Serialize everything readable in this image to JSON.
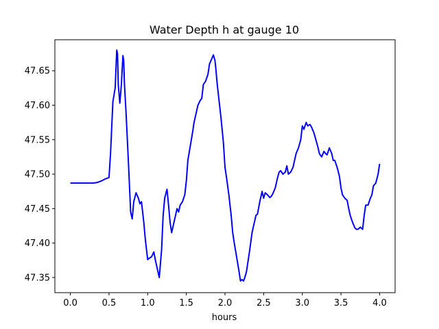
{
  "chart_data": {
    "type": "line",
    "title": "Water Depth h at gauge 10",
    "xlabel": "hours",
    "ylabel": "",
    "xlim": [
      -0.2,
      4.2
    ],
    "ylim": [
      47.328,
      47.695
    ],
    "xticks": [
      0.0,
      0.5,
      1.0,
      1.5,
      2.0,
      2.5,
      3.0,
      3.5,
      4.0
    ],
    "xtick_labels": [
      "0.0",
      "0.5",
      "1.0",
      "1.5",
      "2.0",
      "2.5",
      "3.0",
      "3.5",
      "4.0"
    ],
    "yticks": [
      47.35,
      47.4,
      47.45,
      47.5,
      47.55,
      47.6,
      47.65
    ],
    "ytick_labels": [
      "47.35",
      "47.40",
      "47.45",
      "47.50",
      "47.55",
      "47.60",
      "47.65"
    ],
    "grid": false,
    "series": [
      {
        "color": "#0000ff",
        "x": [
          0.0,
          0.1,
          0.2,
          0.3,
          0.35,
          0.4,
          0.45,
          0.5,
          0.52,
          0.55,
          0.58,
          0.6,
          0.61,
          0.62,
          0.64,
          0.66,
          0.68,
          0.69,
          0.7,
          0.72,
          0.75,
          0.78,
          0.8,
          0.82,
          0.85,
          0.88,
          0.9,
          0.92,
          0.95,
          0.97,
          1.0,
          1.02,
          1.05,
          1.08,
          1.1,
          1.12,
          1.15,
          1.18,
          1.2,
          1.22,
          1.25,
          1.27,
          1.29,
          1.31,
          1.33,
          1.35,
          1.38,
          1.4,
          1.42,
          1.45,
          1.48,
          1.5,
          1.52,
          1.55,
          1.58,
          1.6,
          1.63,
          1.65,
          1.68,
          1.7,
          1.72,
          1.75,
          1.78,
          1.8,
          1.82,
          1.85,
          1.87,
          1.88,
          1.9,
          1.92,
          1.95,
          1.98,
          2.0,
          2.02,
          2.05,
          2.08,
          2.1,
          2.12,
          2.15,
          2.18,
          2.2,
          2.22,
          2.24,
          2.25,
          2.27,
          2.28,
          2.3,
          2.32,
          2.35,
          2.38,
          2.4,
          2.42,
          2.45,
          2.48,
          2.5,
          2.52,
          2.55,
          2.58,
          2.6,
          2.62,
          2.65,
          2.68,
          2.7,
          2.72,
          2.75,
          2.78,
          2.8,
          2.82,
          2.85,
          2.88,
          2.9,
          2.92,
          2.95,
          2.98,
          3.0,
          3.02,
          3.05,
          3.07,
          3.1,
          3.12,
          3.15,
          3.18,
          3.2,
          3.22,
          3.25,
          3.28,
          3.3,
          3.32,
          3.35,
          3.38,
          3.4,
          3.42,
          3.45,
          3.48,
          3.5,
          3.52,
          3.55,
          3.58,
          3.6,
          3.62,
          3.65,
          3.68,
          3.7,
          3.72,
          3.75,
          3.78,
          3.8,
          3.82,
          3.85,
          3.88,
          3.9,
          3.92,
          3.95,
          3.98,
          4.0
        ],
        "values": [
          47.487,
          47.487,
          47.487,
          47.487,
          47.488,
          47.49,
          47.493,
          47.495,
          47.53,
          47.605,
          47.625,
          47.68,
          47.675,
          47.63,
          47.603,
          47.63,
          47.672,
          47.665,
          47.63,
          47.59,
          47.52,
          47.445,
          47.435,
          47.46,
          47.473,
          47.465,
          47.457,
          47.46,
          47.43,
          47.405,
          47.376,
          47.378,
          47.38,
          47.387,
          47.375,
          47.365,
          47.35,
          47.39,
          47.44,
          47.465,
          47.478,
          47.455,
          47.43,
          47.415,
          47.425,
          47.435,
          47.45,
          47.445,
          47.455,
          47.46,
          47.47,
          47.49,
          47.52,
          47.54,
          47.56,
          47.575,
          47.59,
          47.6,
          47.607,
          47.61,
          47.63,
          47.635,
          47.645,
          47.66,
          47.665,
          47.673,
          47.665,
          47.655,
          47.63,
          47.61,
          47.58,
          47.545,
          47.51,
          47.495,
          47.47,
          47.44,
          47.415,
          47.4,
          47.38,
          47.36,
          47.345,
          47.347,
          47.345,
          47.348,
          47.355,
          47.36,
          47.375,
          47.39,
          47.415,
          47.43,
          47.44,
          47.442,
          47.46,
          47.475,
          47.465,
          47.473,
          47.47,
          47.466,
          47.468,
          47.472,
          47.48,
          47.495,
          47.503,
          47.505,
          47.5,
          47.503,
          47.512,
          47.5,
          47.503,
          47.51,
          47.52,
          47.53,
          47.538,
          47.55,
          47.57,
          47.565,
          47.575,
          47.57,
          47.572,
          47.568,
          47.56,
          47.548,
          47.54,
          47.53,
          47.525,
          47.533,
          47.53,
          47.528,
          47.538,
          47.53,
          47.52,
          47.52,
          47.51,
          47.497,
          47.48,
          47.47,
          47.465,
          47.462,
          47.45,
          47.44,
          47.43,
          47.422,
          47.42,
          47.42,
          47.423,
          47.42,
          47.44,
          47.455,
          47.455,
          47.465,
          47.47,
          47.483,
          47.487,
          47.5,
          47.515
        ]
      }
    ]
  }
}
